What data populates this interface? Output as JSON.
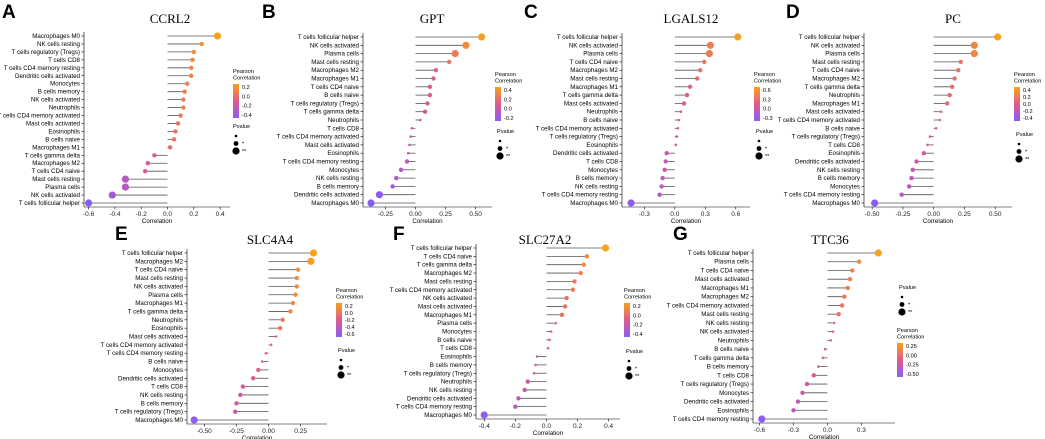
{
  "colors": {
    "low": "#8A5CF6",
    "mid": "#E05A8C",
    "high": "#F7A21B",
    "stem": "#555555"
  },
  "legend_common": {
    "corr_title_1": "Pearson",
    "corr_title_2": "Correlation",
    "pvalue_title": "Pvalue",
    "pvalue_labels": [
      "*",
      "**"
    ]
  },
  "chart_data": [
    {
      "type": "lollipop",
      "letter": "A",
      "title": "CCRL2",
      "xlabel": "Correlation",
      "xlim": [
        -0.62,
        0.46
      ],
      "xticks": [
        "-0.6",
        "-0.4",
        "-0.2",
        "0.0",
        "0.2",
        "0.4"
      ],
      "xtick_values": [
        -0.6,
        -0.4,
        -0.2,
        0.0,
        0.2,
        0.4
      ],
      "legend_ticks": [
        "0.2",
        "0.0",
        "-0.2",
        "-0.4"
      ],
      "color_range": [
        -0.55,
        0.36
      ],
      "categories": [
        "Macrophages M0",
        "NK cells resting",
        "T cells regulatory (Tregs)",
        "T cells CD8",
        "T cells CD4 memory resting",
        "Dendritic cells activated",
        "Monocytes",
        "B cells memory",
        "NK cells activated",
        "Neutrophils",
        "T cells CD4 memory activated",
        "Mast cells activated",
        "Eosinophils",
        "B cells naive",
        "Macrophages M1",
        "T cells gamma delta",
        "Macrophages M2",
        "T cells CD4 naive",
        "Mast cells resting",
        "Plasma cells",
        "NK cells activated",
        "T cells follicular helper"
      ],
      "values": [
        0.38,
        0.26,
        0.2,
        0.19,
        0.18,
        0.18,
        0.15,
        0.13,
        0.12,
        0.12,
        0.1,
        0.08,
        0.06,
        0.05,
        0.02,
        -0.1,
        -0.15,
        -0.17,
        -0.32,
        -0.32,
        -0.42,
        -0.6
      ],
      "sizes": [
        2,
        1,
        1,
        1,
        1,
        1,
        1,
        1,
        1,
        1,
        1,
        1,
        1,
        1,
        1,
        1,
        1,
        1,
        2,
        2,
        2,
        2
      ]
    },
    {
      "type": "lollipop",
      "letter": "B",
      "title": "GPT",
      "xlabel": "Correlation",
      "xlim": [
        -0.42,
        0.62
      ],
      "xticks": [
        "-0.25",
        "0.00",
        "0.25",
        "0.50"
      ],
      "xtick_values": [
        -0.25,
        0.0,
        0.25,
        0.5
      ],
      "legend_ticks": [
        "0.4",
        "0.2",
        "0.0",
        "-0.2"
      ],
      "color_range": [
        -0.3,
        0.55
      ],
      "categories": [
        "T cells follicular helper",
        "NK cells activated",
        "Plasma cells",
        "Mast cells resting",
        "Macrophages M2",
        "Macrophages M1",
        "T cells CD4 naive",
        "B cells naive",
        "T cells regulatory (Tregs)",
        "T cells gamma delta",
        "Neutrophils",
        "T cells CD8",
        "T cells CD4 memory activated",
        "Mast cells activated",
        "Eosinophils",
        "T cells CD4 memory resting",
        "Monocytes",
        "NK cells resting",
        "B cells memory",
        "Dendritic cells activated",
        "Macrophages M0"
      ],
      "values": [
        0.55,
        0.42,
        0.33,
        0.28,
        0.17,
        0.15,
        0.12,
        0.12,
        0.1,
        0.08,
        0.04,
        -0.03,
        -0.04,
        -0.05,
        -0.06,
        -0.07,
        -0.12,
        -0.16,
        -0.19,
        -0.3,
        -0.37
      ],
      "sizes": [
        2,
        2,
        2,
        1,
        1,
        1,
        1,
        1,
        1,
        1,
        0,
        0,
        0,
        0,
        0,
        1,
        1,
        1,
        1,
        2,
        2
      ]
    },
    {
      "type": "lollipop",
      "letter": "C",
      "title": "LGALS12",
      "xlabel": "Correlation",
      "xlim": [
        -0.5,
        0.72
      ],
      "xticks": [
        "-0.3",
        "0.0",
        "0.3",
        "0.6"
      ],
      "xtick_values": [
        -0.3,
        0.0,
        0.3,
        0.6
      ],
      "legend_ticks": [
        "0.6",
        "0.3",
        "0.0",
        "-0.3"
      ],
      "color_range": [
        -0.45,
        0.62
      ],
      "categories": [
        "T cells follicular helper",
        "NK cells activated",
        "Plasma cells",
        "T cells CD4 naive",
        "Macrophages M2",
        "Mast cells resting",
        "Macrophages M1",
        "T cells gamma delta",
        "Mast cells activated",
        "Neutrophils",
        "B cells naive",
        "T cells CD4 memory activated",
        "T cells regulatory (Tregs)",
        "Eosinophils",
        "Dendritic cells activated",
        "T cells CD8",
        "Monocytes",
        "B cells memory",
        "NK cells resting",
        "T cells CD4 memory resting",
        "Macrophages M0"
      ],
      "values": [
        0.62,
        0.35,
        0.34,
        0.29,
        0.25,
        0.22,
        0.15,
        0.12,
        0.09,
        0.06,
        0.04,
        0.03,
        0.02,
        0.01,
        -0.08,
        -0.09,
        -0.1,
        -0.12,
        -0.13,
        -0.15,
        -0.43
      ],
      "sizes": [
        2,
        2,
        2,
        1,
        1,
        1,
        1,
        1,
        1,
        0,
        0,
        0,
        0,
        0,
        1,
        1,
        1,
        1,
        1,
        1,
        2
      ]
    },
    {
      "type": "lollipop",
      "letter": "D",
      "title": "PC",
      "xlabel": "Correlation",
      "xlim": [
        -0.55,
        0.62
      ],
      "xticks": [
        "-0.50",
        "-0.25",
        "0.00",
        "0.25",
        "0.50"
      ],
      "xtick_values": [
        -0.5,
        -0.25,
        0.0,
        0.25,
        0.5
      ],
      "legend_ticks": [
        "0.4",
        "0.2",
        "0.0",
        "-0.2",
        "-0.4"
      ],
      "color_range": [
        -0.5,
        0.52
      ],
      "categories": [
        "T cells follicular helper",
        "NK cells activated",
        "Plasma cells",
        "Mast cells resting",
        "T cells CD4 naive",
        "Macrophages M2",
        "T cells gamma delta",
        "Neutrophils",
        "Macrophages M1",
        "Mast cells activated",
        "T cells CD4 memory activated",
        "B cells naive",
        "T cells regulatory (Tregs)",
        "T cells CD8",
        "Eosinophils",
        "Dendritic cells activated",
        "NK cells resting",
        "B cells memory",
        "Monocytes",
        "T cells CD4 memory resting",
        "Macrophages M0"
      ],
      "values": [
        0.52,
        0.33,
        0.33,
        0.22,
        0.2,
        0.17,
        0.15,
        0.13,
        0.11,
        0.06,
        0.05,
        0.02,
        -0.03,
        -0.05,
        -0.08,
        -0.14,
        -0.17,
        -0.18,
        -0.2,
        -0.26,
        -0.48
      ],
      "sizes": [
        2,
        2,
        2,
        1,
        1,
        1,
        1,
        1,
        1,
        0,
        0,
        0,
        0,
        0,
        1,
        1,
        1,
        1,
        1,
        1,
        2
      ]
    },
    {
      "type": "lollipop",
      "letter": "E",
      "title": "SLC4A4",
      "xlabel": "Correlation",
      "xlim": [
        -0.62,
        0.44
      ],
      "xticks": [
        "-0.50",
        "-0.25",
        "0.00",
        "0.25"
      ],
      "xtick_values": [
        -0.5,
        -0.25,
        0.0,
        0.25
      ],
      "legend_ticks": [
        "0.2",
        "0.0",
        "-0.2",
        "-0.4",
        "-0.6"
      ],
      "color_range": [
        -0.6,
        0.35
      ],
      "categories": [
        "T cells follicular helper",
        "Macrophages M2",
        "T cells CD4 naive",
        "Mast cells resting",
        "NK cells activated",
        "Plasma cells",
        "Macrophages M1",
        "T cells gamma delta",
        "Neutrophils",
        "Eosinophils",
        "Mast cells activated",
        "T cells CD4 memory activated",
        "T cells CD4 memory resting",
        "B cells naive",
        "Monocytes",
        "Dendritic cells activated",
        "T cells CD8",
        "NK cells resting",
        "B cells memory",
        "T cells regulatory (Tregs)",
        "Macrophages M0"
      ],
      "values": [
        0.35,
        0.33,
        0.23,
        0.22,
        0.22,
        0.21,
        0.19,
        0.17,
        0.11,
        0.09,
        0.06,
        0.02,
        -0.02,
        -0.05,
        -0.08,
        -0.12,
        -0.2,
        -0.22,
        -0.25,
        -0.26,
        -0.58
      ],
      "sizes": [
        2,
        2,
        1,
        1,
        1,
        1,
        1,
        1,
        1,
        1,
        0,
        0,
        0,
        0,
        1,
        1,
        1,
        1,
        1,
        1,
        2
      ]
    },
    {
      "type": "lollipop",
      "letter": "F",
      "title": "SLC27A2",
      "xlabel": "Correlation",
      "xlim": [
        -0.44,
        0.46
      ],
      "xticks": [
        "-0.4",
        "-0.2",
        "0.0",
        "0.2",
        "0.4"
      ],
      "xtick_values": [
        -0.4,
        -0.2,
        0.0,
        0.2,
        0.4
      ],
      "legend_ticks": [
        "0.2",
        "0.0",
        "-0.2",
        "-0.4"
      ],
      "color_range": [
        -0.42,
        0.38
      ],
      "categories": [
        "T cells follicular helper",
        "T cells CD4 naive",
        "T cells gamma delta",
        "Macrophages M2",
        "Mast cells resting",
        "T cells CD4 memory activated",
        "NK cells activated",
        "Mast cells activated",
        "Macrophages M1",
        "Plasma cells",
        "Monocytes",
        "B cells naive",
        "T cells CD8",
        "Eosinophils",
        "B cells memory",
        "T cells regulatory (Tregs)",
        "Neutrophils",
        "NK cells resting",
        "Dendritic cells activated",
        "T cells CD4 memory resting",
        "Macrophages M0"
      ],
      "values": [
        0.38,
        0.26,
        0.24,
        0.22,
        0.18,
        0.17,
        0.13,
        0.12,
        0.1,
        0.06,
        0.03,
        0.02,
        0.01,
        -0.06,
        -0.07,
        -0.08,
        -0.12,
        -0.14,
        -0.18,
        -0.2,
        -0.4
      ],
      "sizes": [
        2,
        1,
        1,
        1,
        1,
        1,
        1,
        1,
        1,
        0,
        0,
        0,
        0,
        0,
        0,
        0,
        1,
        1,
        1,
        1,
        2
      ]
    },
    {
      "type": "lollipop",
      "letter": "G",
      "title": "TTC36",
      "xlabel": "Correlation",
      "xlim": [
        -0.64,
        0.58
      ],
      "xticks": [
        "-0.6",
        "-0.3",
        "0.0",
        "0.3"
      ],
      "xtick_values": [
        -0.6,
        -0.3,
        0.0,
        0.3
      ],
      "legend_ticks": [
        "0.25",
        "0.00",
        "-0.25",
        "-0.50"
      ],
      "color_range": [
        -0.6,
        0.45
      ],
      "categories": [
        "T cells follicular helper",
        "Plasma cells",
        "T cells CD4 naive",
        "Mast cells activated",
        "Macrophages M1",
        "Macrophages M2",
        "T cells CD4 memory activated",
        "Mast cells resting",
        "NK cells resting",
        "NK cells activated",
        "Neutrophils",
        "B cells naive",
        "T cells gamma delta",
        "B cells memory",
        "T cells CD8",
        "T cells regulatory (Tregs)",
        "Monocytes",
        "Dendritic cells activated",
        "Eosinophils",
        "T cells CD4 memory resting"
      ],
      "values": [
        0.45,
        0.28,
        0.22,
        0.2,
        0.18,
        0.15,
        0.13,
        0.1,
        0.06,
        0.05,
        0.03,
        -0.02,
        -0.04,
        -0.08,
        -0.12,
        -0.18,
        -0.22,
        -0.26,
        -0.3,
        -0.58
      ],
      "sizes": [
        2,
        1,
        1,
        1,
        1,
        1,
        1,
        1,
        0,
        0,
        0,
        0,
        0,
        0,
        1,
        1,
        1,
        1,
        1,
        2
      ]
    }
  ]
}
